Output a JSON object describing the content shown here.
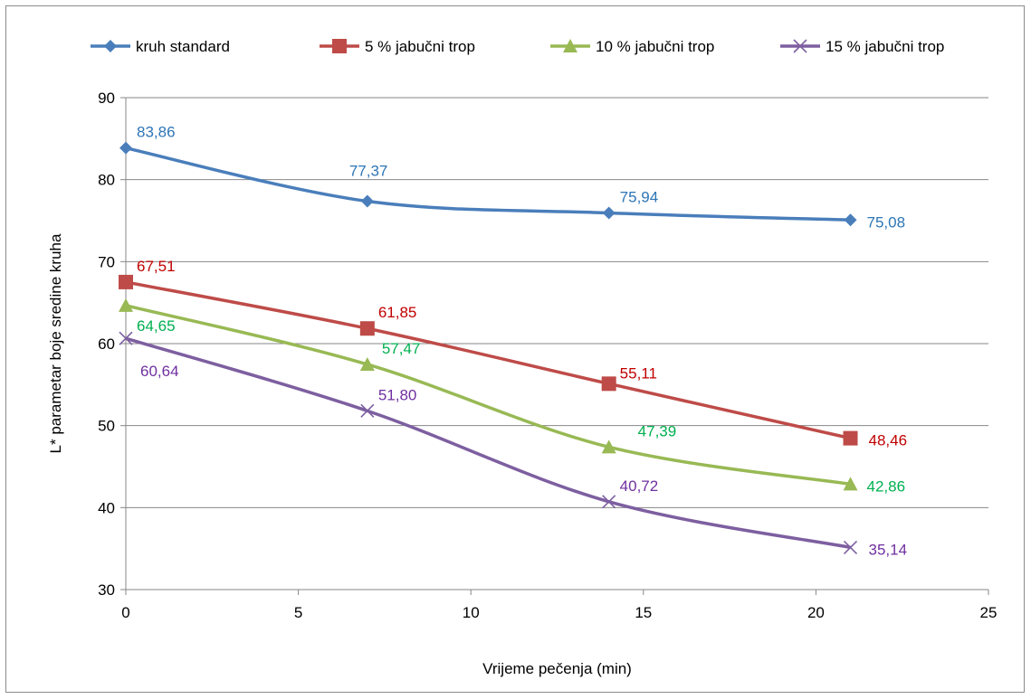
{
  "chart_data": {
    "type": "line",
    "title": "",
    "xlabel": "Vrijeme pečenja (min)",
    "ylabel": "L* parametar boje sredine kruha",
    "xlim": [
      0,
      25
    ],
    "ylim": [
      30,
      90
    ],
    "x_ticks": [
      0,
      5,
      10,
      15,
      20,
      25
    ],
    "y_ticks": [
      30,
      40,
      50,
      60,
      70,
      80,
      90
    ],
    "grid": "horizontal",
    "legend_position": "top",
    "x": [
      0,
      7,
      14,
      21
    ],
    "series": [
      {
        "name": "kruh standard",
        "values": [
          83.86,
          77.37,
          75.94,
          75.08
        ],
        "labels": [
          "83,86",
          "77,37",
          "75,94",
          "75,08"
        ],
        "color": "#4a7ebb",
        "label_color": "#2e75b6",
        "marker": "diamond"
      },
      {
        "name": "5 % jabučni trop",
        "values": [
          67.51,
          61.85,
          55.11,
          48.46
        ],
        "labels": [
          "67,51",
          "61,85",
          "55,11",
          "48,46"
        ],
        "color": "#be4b48",
        "label_color": "#c00000",
        "marker": "square"
      },
      {
        "name": "10 % jabučni trop",
        "values": [
          64.65,
          57.47,
          47.39,
          42.86
        ],
        "labels": [
          "64,65",
          "57,47",
          "47,39",
          "42,86"
        ],
        "color": "#98b954",
        "label_color": "#00b050",
        "marker": "triangle"
      },
      {
        "name": "15 % jabučni trop",
        "values": [
          60.64,
          51.8,
          40.72,
          35.14
        ],
        "labels": [
          "60,64",
          "51,80",
          "40,72",
          "35,14"
        ],
        "color": "#7d5fa0",
        "label_color": "#7030a0",
        "marker": "x"
      }
    ]
  }
}
